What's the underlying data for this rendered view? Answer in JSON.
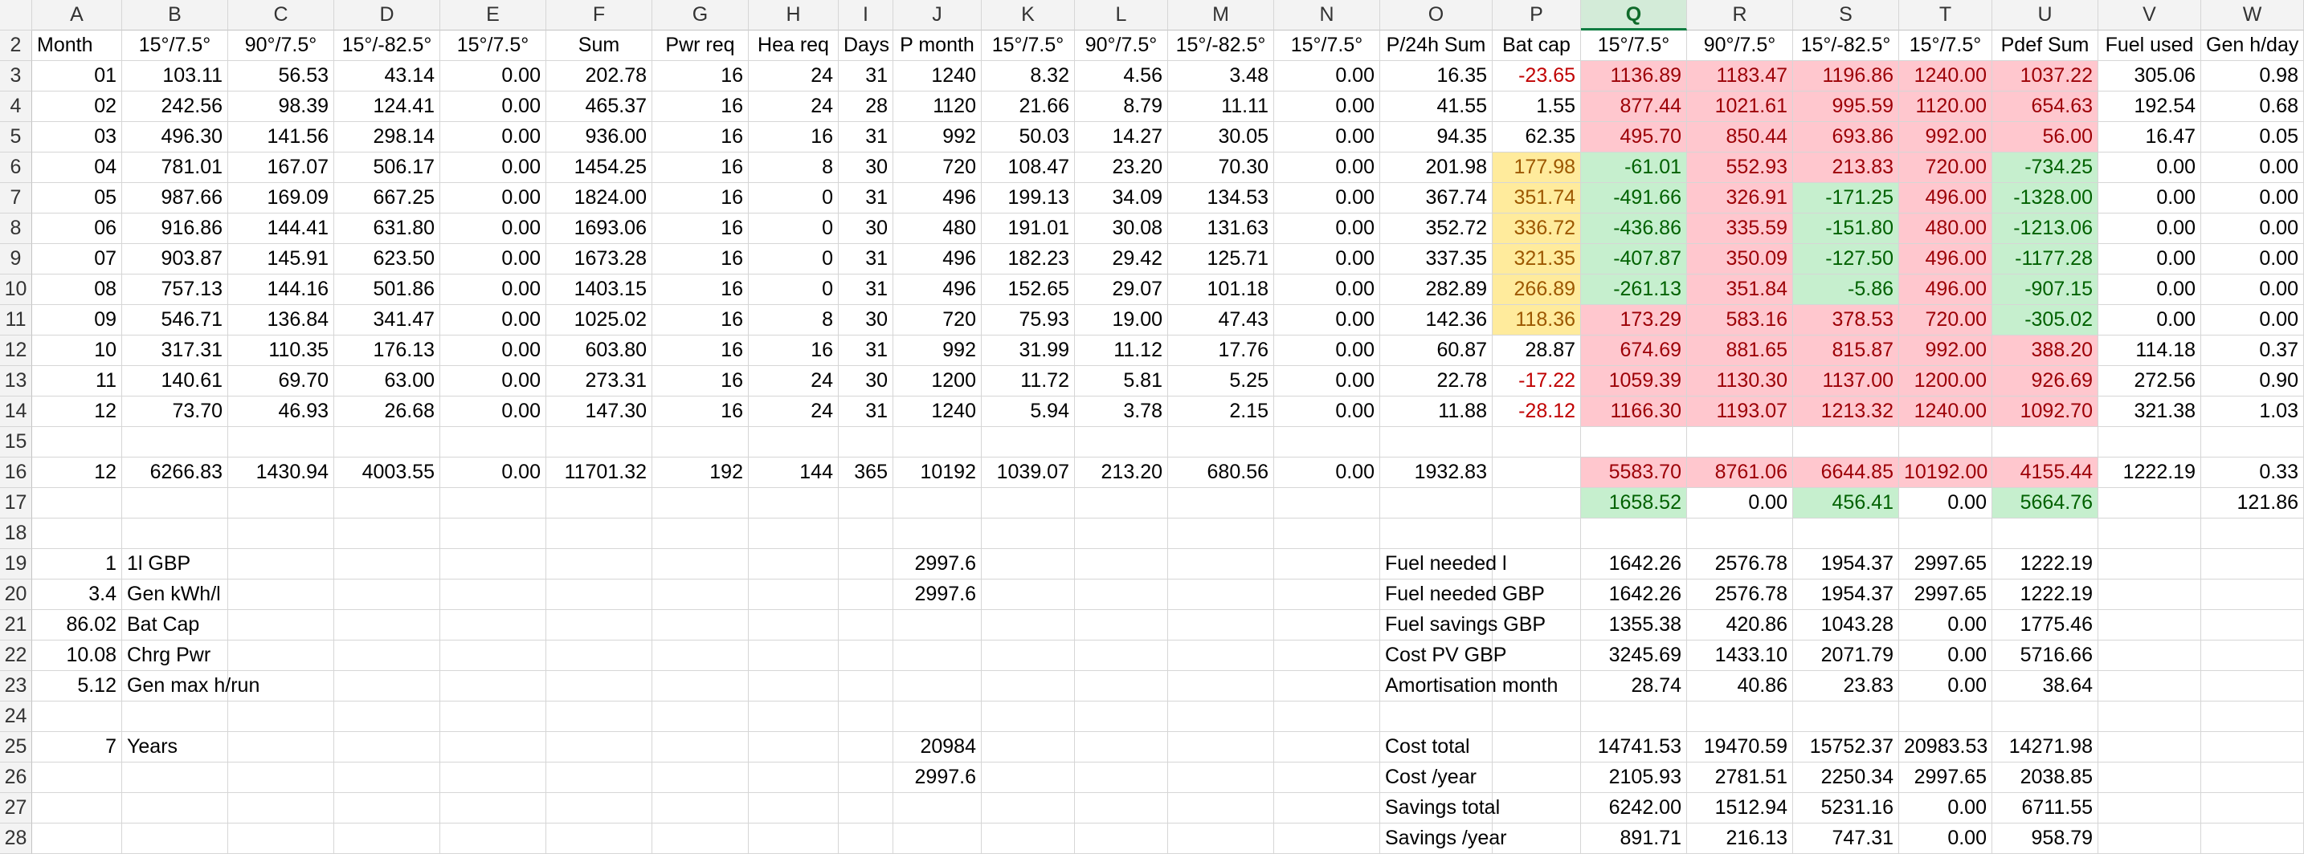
{
  "columns": [
    "A",
    "B",
    "C",
    "D",
    "E",
    "F",
    "G",
    "H",
    "I",
    "J",
    "K",
    "L",
    "M",
    "N",
    "O",
    "P",
    "Q",
    "R",
    "S",
    "T",
    "U",
    "V",
    "W"
  ],
  "active_column": "Q",
  "rows": [
    {
      "n": "2",
      "cells": {
        "A": "Month",
        "B": "15°/7.5°",
        "C": "90°/7.5°",
        "D": "15°/-82.5°",
        "E": "15°/7.5°",
        "F": "Sum",
        "G": "Pwr req",
        "H": "Hea req",
        "I": "Days",
        "J": "P month",
        "K": "15°/7.5°",
        "L": "90°/7.5°",
        "M": "15°/-82.5°",
        "N": "15°/7.5°",
        "O": "P/24h Sum",
        "P": "Bat cap",
        "Q": "15°/7.5°",
        "R": "90°/7.5°",
        "S": "15°/-82.5°",
        "T": "15°/7.5°",
        "U": "Pdef Sum",
        "V": "Fuel used",
        "W": "Gen h/day"
      },
      "header": true
    },
    {
      "n": "3",
      "cells": {
        "A": "01",
        "B": "103.11",
        "C": "56.53",
        "D": "43.14",
        "E": "0.00",
        "F": "202.78",
        "G": "16",
        "H": "24",
        "I": "31",
        "J": "1240",
        "K": "8.32",
        "L": "4.56",
        "M": "3.48",
        "N": "0.00",
        "O": "16.35",
        "P": "-23.65",
        "Q": "1136.89",
        "R": "1183.47",
        "S": "1196.86",
        "T": "1240.00",
        "U": "1037.22",
        "V": "305.06",
        "W": "0.98"
      },
      "styles": {
        "P": "red-txt",
        "Q": "bg-red",
        "R": "bg-red",
        "S": "bg-red",
        "T": "bg-red",
        "U": "bg-red"
      }
    },
    {
      "n": "4",
      "cells": {
        "A": "02",
        "B": "242.56",
        "C": "98.39",
        "D": "124.41",
        "E": "0.00",
        "F": "465.37",
        "G": "16",
        "H": "24",
        "I": "28",
        "J": "1120",
        "K": "21.66",
        "L": "8.79",
        "M": "11.11",
        "N": "0.00",
        "O": "41.55",
        "P": "1.55",
        "Q": "877.44",
        "R": "1021.61",
        "S": "995.59",
        "T": "1120.00",
        "U": "654.63",
        "V": "192.54",
        "W": "0.68"
      },
      "styles": {
        "Q": "bg-red",
        "R": "bg-red",
        "S": "bg-red",
        "T": "bg-red",
        "U": "bg-red"
      }
    },
    {
      "n": "5",
      "cells": {
        "A": "03",
        "B": "496.30",
        "C": "141.56",
        "D": "298.14",
        "E": "0.00",
        "F": "936.00",
        "G": "16",
        "H": "16",
        "I": "31",
        "J": "992",
        "K": "50.03",
        "L": "14.27",
        "M": "30.05",
        "N": "0.00",
        "O": "94.35",
        "P": "62.35",
        "Q": "495.70",
        "R": "850.44",
        "S": "693.86",
        "T": "992.00",
        "U": "56.00",
        "V": "16.47",
        "W": "0.05"
      },
      "styles": {
        "Q": "bg-red",
        "R": "bg-red",
        "S": "bg-red",
        "T": "bg-red",
        "U": "bg-red"
      }
    },
    {
      "n": "6",
      "cells": {
        "A": "04",
        "B": "781.01",
        "C": "167.07",
        "D": "506.17",
        "E": "0.00",
        "F": "1454.25",
        "G": "16",
        "H": "8",
        "I": "30",
        "J": "720",
        "K": "108.47",
        "L": "23.20",
        "M": "70.30",
        "N": "0.00",
        "O": "201.98",
        "P": "177.98",
        "Q": "-61.01",
        "R": "552.93",
        "S": "213.83",
        "T": "720.00",
        "U": "-734.25",
        "V": "0.00",
        "W": "0.00"
      },
      "styles": {
        "P": "bg-yellow",
        "Q": "bg-green",
        "R": "bg-red",
        "S": "bg-red",
        "T": "bg-red",
        "U": "bg-green"
      }
    },
    {
      "n": "7",
      "cells": {
        "A": "05",
        "B": "987.66",
        "C": "169.09",
        "D": "667.25",
        "E": "0.00",
        "F": "1824.00",
        "G": "16",
        "H": "0",
        "I": "31",
        "J": "496",
        "K": "199.13",
        "L": "34.09",
        "M": "134.53",
        "N": "0.00",
        "O": "367.74",
        "P": "351.74",
        "Q": "-491.66",
        "R": "326.91",
        "S": "-171.25",
        "T": "496.00",
        "U": "-1328.00",
        "V": "0.00",
        "W": "0.00"
      },
      "styles": {
        "P": "bg-yellow",
        "Q": "bg-green",
        "R": "bg-red",
        "S": "bg-green",
        "T": "bg-red",
        "U": "bg-green"
      }
    },
    {
      "n": "8",
      "cells": {
        "A": "06",
        "B": "916.86",
        "C": "144.41",
        "D": "631.80",
        "E": "0.00",
        "F": "1693.06",
        "G": "16",
        "H": "0",
        "I": "30",
        "J": "480",
        "K": "191.01",
        "L": "30.08",
        "M": "131.63",
        "N": "0.00",
        "O": "352.72",
        "P": "336.72",
        "Q": "-436.86",
        "R": "335.59",
        "S": "-151.80",
        "T": "480.00",
        "U": "-1213.06",
        "V": "0.00",
        "W": "0.00"
      },
      "styles": {
        "P": "bg-yellow",
        "Q": "bg-green",
        "R": "bg-red",
        "S": "bg-green",
        "T": "bg-red",
        "U": "bg-green"
      }
    },
    {
      "n": "9",
      "cells": {
        "A": "07",
        "B": "903.87",
        "C": "145.91",
        "D": "623.50",
        "E": "0.00",
        "F": "1673.28",
        "G": "16",
        "H": "0",
        "I": "31",
        "J": "496",
        "K": "182.23",
        "L": "29.42",
        "M": "125.71",
        "N": "0.00",
        "O": "337.35",
        "P": "321.35",
        "Q": "-407.87",
        "R": "350.09",
        "S": "-127.50",
        "T": "496.00",
        "U": "-1177.28",
        "V": "0.00",
        "W": "0.00"
      },
      "styles": {
        "P": "bg-yellow",
        "Q": "bg-green",
        "R": "bg-red",
        "S": "bg-green",
        "T": "bg-red",
        "U": "bg-green"
      }
    },
    {
      "n": "10",
      "cells": {
        "A": "08",
        "B": "757.13",
        "C": "144.16",
        "D": "501.86",
        "E": "0.00",
        "F": "1403.15",
        "G": "16",
        "H": "0",
        "I": "31",
        "J": "496",
        "K": "152.65",
        "L": "29.07",
        "M": "101.18",
        "N": "0.00",
        "O": "282.89",
        "P": "266.89",
        "Q": "-261.13",
        "R": "351.84",
        "S": "-5.86",
        "T": "496.00",
        "U": "-907.15",
        "V": "0.00",
        "W": "0.00"
      },
      "styles": {
        "P": "bg-yellow",
        "Q": "bg-green",
        "R": "bg-red",
        "S": "bg-green",
        "T": "bg-red",
        "U": "bg-green"
      }
    },
    {
      "n": "11",
      "cells": {
        "A": "09",
        "B": "546.71",
        "C": "136.84",
        "D": "341.47",
        "E": "0.00",
        "F": "1025.02",
        "G": "16",
        "H": "8",
        "I": "30",
        "J": "720",
        "K": "75.93",
        "L": "19.00",
        "M": "47.43",
        "N": "0.00",
        "O": "142.36",
        "P": "118.36",
        "Q": "173.29",
        "R": "583.16",
        "S": "378.53",
        "T": "720.00",
        "U": "-305.02",
        "V": "0.00",
        "W": "0.00"
      },
      "styles": {
        "P": "bg-yellow",
        "Q": "bg-red",
        "R": "bg-red",
        "S": "bg-red",
        "T": "bg-red",
        "U": "bg-green"
      }
    },
    {
      "n": "12",
      "cells": {
        "A": "10",
        "B": "317.31",
        "C": "110.35",
        "D": "176.13",
        "E": "0.00",
        "F": "603.80",
        "G": "16",
        "H": "16",
        "I": "31",
        "J": "992",
        "K": "31.99",
        "L": "11.12",
        "M": "17.76",
        "N": "0.00",
        "O": "60.87",
        "P": "28.87",
        "Q": "674.69",
        "R": "881.65",
        "S": "815.87",
        "T": "992.00",
        "U": "388.20",
        "V": "114.18",
        "W": "0.37"
      },
      "styles": {
        "Q": "bg-red",
        "R": "bg-red",
        "S": "bg-red",
        "T": "bg-red",
        "U": "bg-red"
      }
    },
    {
      "n": "13",
      "cells": {
        "A": "11",
        "B": "140.61",
        "C": "69.70",
        "D": "63.00",
        "E": "0.00",
        "F": "273.31",
        "G": "16",
        "H": "24",
        "I": "30",
        "J": "1200",
        "K": "11.72",
        "L": "5.81",
        "M": "5.25",
        "N": "0.00",
        "O": "22.78",
        "P": "-17.22",
        "Q": "1059.39",
        "R": "1130.30",
        "S": "1137.00",
        "T": "1200.00",
        "U": "926.69",
        "V": "272.56",
        "W": "0.90"
      },
      "styles": {
        "P": "red-txt",
        "Q": "bg-red",
        "R": "bg-red",
        "S": "bg-red",
        "T": "bg-red",
        "U": "bg-red"
      }
    },
    {
      "n": "14",
      "cells": {
        "A": "12",
        "B": "73.70",
        "C": "46.93",
        "D": "26.68",
        "E": "0.00",
        "F": "147.30",
        "G": "16",
        "H": "24",
        "I": "31",
        "J": "1240",
        "K": "5.94",
        "L": "3.78",
        "M": "2.15",
        "N": "0.00",
        "O": "11.88",
        "P": "-28.12",
        "Q": "1166.30",
        "R": "1193.07",
        "S": "1213.32",
        "T": "1240.00",
        "U": "1092.70",
        "V": "321.38",
        "W": "1.03"
      },
      "styles": {
        "P": "red-txt",
        "Q": "bg-red",
        "R": "bg-red",
        "S": "bg-red",
        "T": "bg-red",
        "U": "bg-red"
      }
    },
    {
      "n": "15",
      "cells": {}
    },
    {
      "n": "16",
      "cells": {
        "A": "12",
        "B": "6266.83",
        "C": "1430.94",
        "D": "4003.55",
        "E": "0.00",
        "F": "11701.32",
        "G": "192",
        "H": "144",
        "I": "365",
        "J": "10192",
        "K": "1039.07",
        "L": "213.20",
        "M": "680.56",
        "N": "0.00",
        "O": "1932.83",
        "Q": "5583.70",
        "R": "8761.06",
        "S": "6644.85",
        "T": "10192.00",
        "U": "4155.44",
        "V": "1222.19",
        "W": "0.33"
      },
      "styles": {
        "Q": "bg-red",
        "R": "bg-red",
        "S": "bg-red",
        "T": "bg-red",
        "U": "bg-red"
      }
    },
    {
      "n": "17",
      "cells": {
        "Q": "1658.52",
        "R": "0.00",
        "S": "456.41",
        "T": "0.00",
        "U": "5664.76",
        "W": "121.86"
      },
      "styles": {
        "Q": "bg-green",
        "S": "bg-green",
        "U": "bg-green"
      }
    },
    {
      "n": "18",
      "cells": {}
    },
    {
      "n": "19",
      "cells": {
        "A": "1",
        "B": "1l GBP",
        "J": "2997.6",
        "O": "Fuel needed l",
        "Q": "1642.26",
        "R": "2576.78",
        "S": "1954.37",
        "T": "2997.65",
        "U": "1222.19"
      }
    },
    {
      "n": "20",
      "cells": {
        "A": "3.4",
        "B": "Gen kWh/l",
        "J": "2997.6",
        "O": "Fuel needed GBP",
        "Q": "1642.26",
        "R": "2576.78",
        "S": "1954.37",
        "T": "2997.65",
        "U": "1222.19"
      }
    },
    {
      "n": "21",
      "cells": {
        "A": "86.02",
        "B": "Bat Cap",
        "O": "Fuel savings GBP",
        "Q": "1355.38",
        "R": "420.86",
        "S": "1043.28",
        "T": "0.00",
        "U": "1775.46"
      }
    },
    {
      "n": "22",
      "cells": {
        "A": "10.08",
        "B": "Chrg Pwr",
        "O": "Cost PV GBP",
        "Q": "3245.69",
        "R": "1433.10",
        "S": "2071.79",
        "T": "0.00",
        "U": "5716.66"
      }
    },
    {
      "n": "23",
      "cells": {
        "A": "5.12",
        "B": "Gen max h/run",
        "O": "Amortisation month",
        "Q": "28.74",
        "R": "40.86",
        "S": "23.83",
        "T": "0.00",
        "U": "38.64"
      }
    },
    {
      "n": "24",
      "cells": {}
    },
    {
      "n": "25",
      "cells": {
        "A": "7",
        "B": "Years",
        "J": "20984",
        "O": "Cost total",
        "Q": "14741.53",
        "R": "19470.59",
        "S": "15752.37",
        "T": "20983.53",
        "U": "14271.98"
      }
    },
    {
      "n": "26",
      "cells": {
        "J": "2997.6",
        "O": "Cost /year",
        "Q": "2105.93",
        "R": "2781.51",
        "S": "2250.34",
        "T": "2997.65",
        "U": "2038.85"
      }
    },
    {
      "n": "27",
      "cells": {
        "O": "Savings total",
        "Q": "6242.00",
        "R": "1512.94",
        "S": "5231.16",
        "T": "0.00",
        "U": "6711.55"
      }
    },
    {
      "n": "28",
      "cells": {
        "O": "Savings /year",
        "Q": "891.71",
        "R": "216.13",
        "S": "747.31",
        "T": "0.00",
        "U": "958.79"
      }
    }
  ]
}
